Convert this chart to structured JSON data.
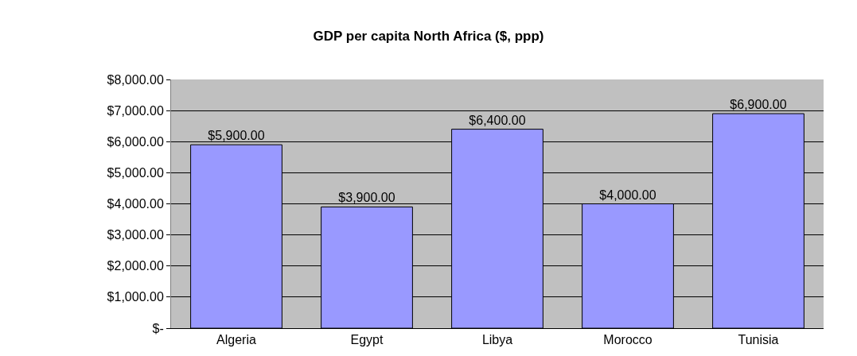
{
  "chart_data": {
    "type": "bar",
    "title": "GDP per capita North Africa ($, ppp)",
    "categories": [
      "Algeria",
      "Egypt",
      "Libya",
      "Morocco",
      "Tunisia"
    ],
    "values": [
      5900,
      3900,
      6400,
      4000,
      6900
    ],
    "value_labels": [
      "$5,900.00",
      "$3,900.00",
      "$6,400.00",
      "$4,000.00",
      "$6,900.00"
    ],
    "color": "#9999ff",
    "ylim": [
      0,
      8000
    ],
    "yticks": [
      {
        "value": 0,
        "label": "$-"
      },
      {
        "value": 1000,
        "label": "$1,000.00"
      },
      {
        "value": 2000,
        "label": "$2,000.00"
      },
      {
        "value": 3000,
        "label": "$3,000.00"
      },
      {
        "value": 4000,
        "label": "$4,000.00"
      },
      {
        "value": 5000,
        "label": "$5,000.00"
      },
      {
        "value": 6000,
        "label": "$6,000.00"
      },
      {
        "value": 7000,
        "label": "$7,000.00"
      },
      {
        "value": 8000,
        "label": "$8,000.00"
      }
    ],
    "grid": "y",
    "legend": false
  }
}
